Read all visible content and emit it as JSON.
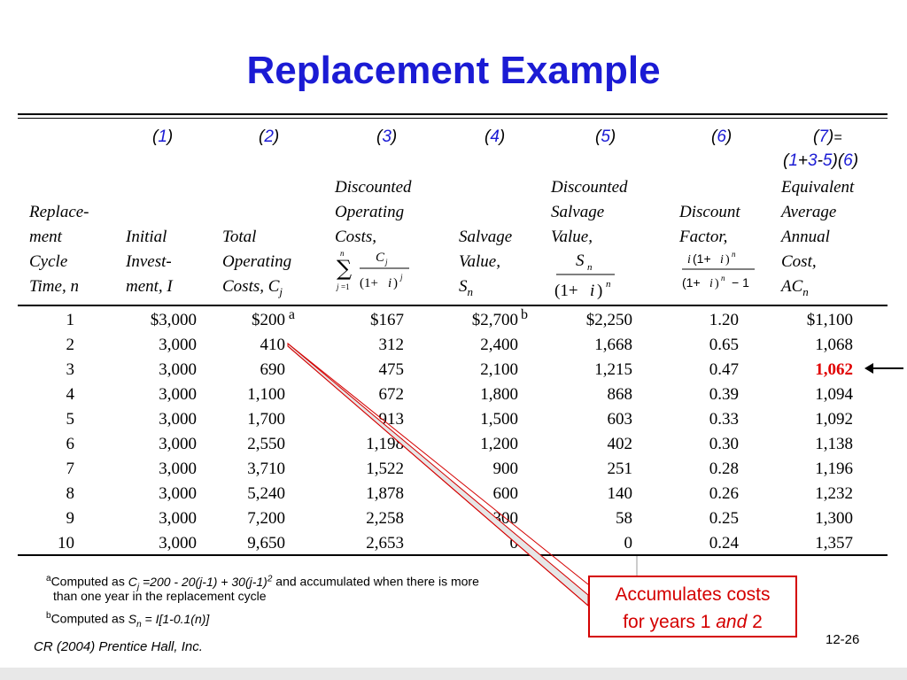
{
  "slide": {
    "title": "Replacement Example",
    "footer_left": "CR (2004) Prentice Hall, Inc.",
    "page_number": "12-26"
  },
  "table": {
    "column_numbers": [
      "1",
      "2",
      "3",
      "4",
      "5",
      "6",
      "7"
    ],
    "col7_equation": "=",
    "col7_formula": {
      "a": "1",
      "b": "3",
      "c": "5",
      "d": "6"
    },
    "headers": {
      "c0": [
        "Replace-",
        "ment",
        "Cycle",
        "Time, n"
      ],
      "c1": [
        "Initial",
        "Invest-",
        "ment, I"
      ],
      "c2": [
        "Total",
        "Operating",
        "Costs, C"
      ],
      "c2_sub": "j",
      "c3": [
        "Discounted",
        "Operating",
        "Costs,"
      ],
      "c4": [
        "Salvage",
        "Value,",
        "S"
      ],
      "c4_sub": "n",
      "c5": [
        "Discounted",
        "Salvage",
        "Value,"
      ],
      "c6": [
        "Discount",
        "Factor,"
      ],
      "c7": [
        "Equivalent",
        "Average",
        "Annual",
        "Cost,",
        "AC"
      ],
      "c7_sub": "n"
    },
    "rows": [
      {
        "n": "1",
        "i": "$3,000",
        "tc": "$200",
        "dc": "$167",
        "sv": "$2,700",
        "dsv": "$2,250",
        "df": "1.20",
        "ac": "$1,100"
      },
      {
        "n": "2",
        "i": "3,000",
        "tc": "410",
        "dc": "312",
        "sv": "2,400",
        "dsv": "1,668",
        "df": "0.65",
        "ac": "1,068"
      },
      {
        "n": "3",
        "i": "3,000",
        "tc": "690",
        "dc": "475",
        "sv": "2,100",
        "dsv": "1,215",
        "df": "0.47",
        "ac": "1,062"
      },
      {
        "n": "4",
        "i": "3,000",
        "tc": "1,100",
        "dc": "672",
        "sv": "1,800",
        "dsv": "868",
        "df": "0.39",
        "ac": "1,094"
      },
      {
        "n": "5",
        "i": "3,000",
        "tc": "1,700",
        "dc": "913",
        "sv": "1,500",
        "dsv": "603",
        "df": "0.33",
        "ac": "1,092"
      },
      {
        "n": "6",
        "i": "3,000",
        "tc": "2,550",
        "dc": "1,198",
        "sv": "1,200",
        "dsv": "402",
        "df": "0.30",
        "ac": "1,138"
      },
      {
        "n": "7",
        "i": "3,000",
        "tc": "3,710",
        "dc": "1,522",
        "sv": "900",
        "dsv": "251",
        "df": "0.28",
        "ac": "1,196"
      },
      {
        "n": "8",
        "i": "3,000",
        "tc": "5,240",
        "dc": "1,878",
        "sv": "600",
        "dsv": "140",
        "df": "0.26",
        "ac": "1,232"
      },
      {
        "n": "9",
        "i": "3,000",
        "tc": "7,200",
        "dc": "2,258",
        "sv": "300",
        "dsv": "58",
        "df": "0.25",
        "ac": "1,300"
      },
      {
        "n": "10",
        "i": "3,000",
        "tc": "9,650",
        "dc": "2,653",
        "sv": "0",
        "dsv": "0",
        "df": "0.24",
        "ac": "1,357"
      }
    ],
    "superscripts": {
      "tc": "a",
      "sv": "b"
    },
    "highlight_color": "#e00000"
  },
  "notes": {
    "a_mark": "a",
    "a_prefix": "Computed as ",
    "a_var": "C",
    "a_var_sub": "j",
    "a_expr": " =200 - 20(j-1) + 30(j-1)",
    "a_exp": "2",
    "a_suffix": " and accumulated when there is more",
    "a_line2": "than one year in the replacement cycle",
    "b_mark": "b",
    "b_prefix": "Computed as ",
    "b_var": "S",
    "b_var_sub": "n",
    "b_expr": " = I[1-0.1(n)]"
  },
  "callout": {
    "line1": "Accumulates costs",
    "line2_pre": "for years 1 ",
    "line2_and": "and",
    "line2_post": " 2"
  }
}
